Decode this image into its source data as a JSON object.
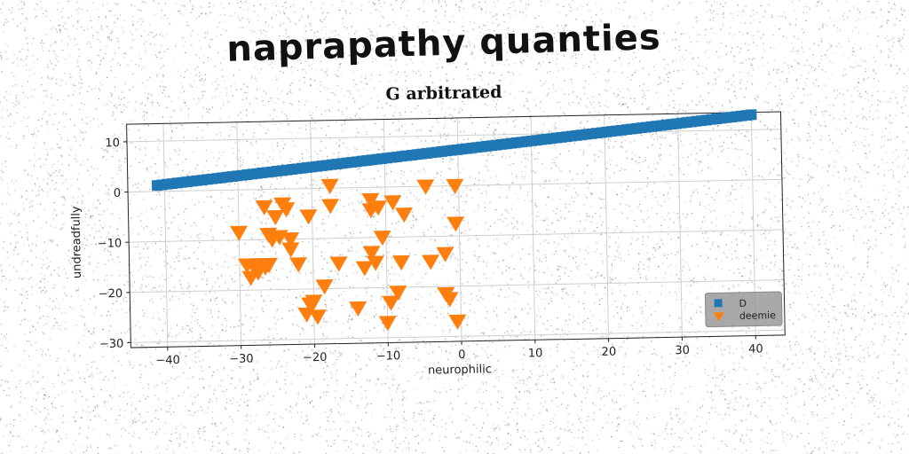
{
  "header": {
    "title": "naprapathy quanties"
  },
  "chart_data": {
    "type": "scatter",
    "title": "G arbitrated",
    "xlabel": "neurophilic",
    "ylabel": "undreadfully",
    "xlim": [
      -45,
      44
    ],
    "ylim": [
      -31,
      13.5
    ],
    "xticks": [
      -40,
      -30,
      -20,
      -10,
      0,
      10,
      20,
      30,
      40
    ],
    "yticks": [
      10,
      0,
      -10,
      -20,
      -30
    ],
    "grid": true,
    "legend_position": "lower-right",
    "series": [
      {
        "name": "D",
        "marker": "square",
        "color": "#1f77b4",
        "x_range": [
          -41,
          40
        ],
        "y_range": [
          1.2,
          13
        ],
        "count": 120
      },
      {
        "name": "deemie",
        "marker": "triangle-down",
        "color": "#ff7f0e",
        "points": [
          [
            -30,
            -8.5
          ],
          [
            -29,
            -15
          ],
          [
            -28.5,
            -17.5
          ],
          [
            -28,
            -15.5
          ],
          [
            -27.5,
            -16.5
          ],
          [
            -27,
            -15
          ],
          [
            -26.5,
            -15.5
          ],
          [
            -26,
            -15
          ],
          [
            -26.5,
            -3.5
          ],
          [
            -26,
            -9
          ],
          [
            -25.5,
            -10
          ],
          [
            -25,
            -5.5
          ],
          [
            -24.5,
            -9.5
          ],
          [
            -24,
            -3
          ],
          [
            -23.5,
            -4
          ],
          [
            -23,
            -10
          ],
          [
            -23,
            -12
          ],
          [
            -22,
            -15
          ],
          [
            -20.5,
            -5.5
          ],
          [
            -21,
            -25
          ],
          [
            -20.5,
            -23
          ],
          [
            -20,
            -22.5
          ],
          [
            -19.5,
            -25.5
          ],
          [
            -18.5,
            -19.5
          ],
          [
            -17.5,
            0.5
          ],
          [
            -17.5,
            -3.5
          ],
          [
            -16.5,
            -15
          ],
          [
            -14,
            -24
          ],
          [
            -13,
            -16
          ],
          [
            -12,
            -2.5
          ],
          [
            -12,
            -4.5
          ],
          [
            -12,
            -13
          ],
          [
            -11.5,
            -15
          ],
          [
            -11,
            -4
          ],
          [
            -10.5,
            -10
          ],
          [
            -10,
            -27
          ],
          [
            -9.5,
            -23
          ],
          [
            -9,
            -3
          ],
          [
            -8.5,
            -21
          ],
          [
            -8,
            -15
          ],
          [
            -7.5,
            -5.5
          ],
          [
            -4.5,
            0
          ],
          [
            -4,
            -15
          ],
          [
            -2,
            -13.5
          ],
          [
            -2,
            -21.5
          ],
          [
            -1.5,
            -22.5
          ],
          [
            -0.5,
            -7.5
          ],
          [
            -0.5,
            -27
          ],
          [
            -0.5,
            0
          ]
        ]
      }
    ]
  }
}
